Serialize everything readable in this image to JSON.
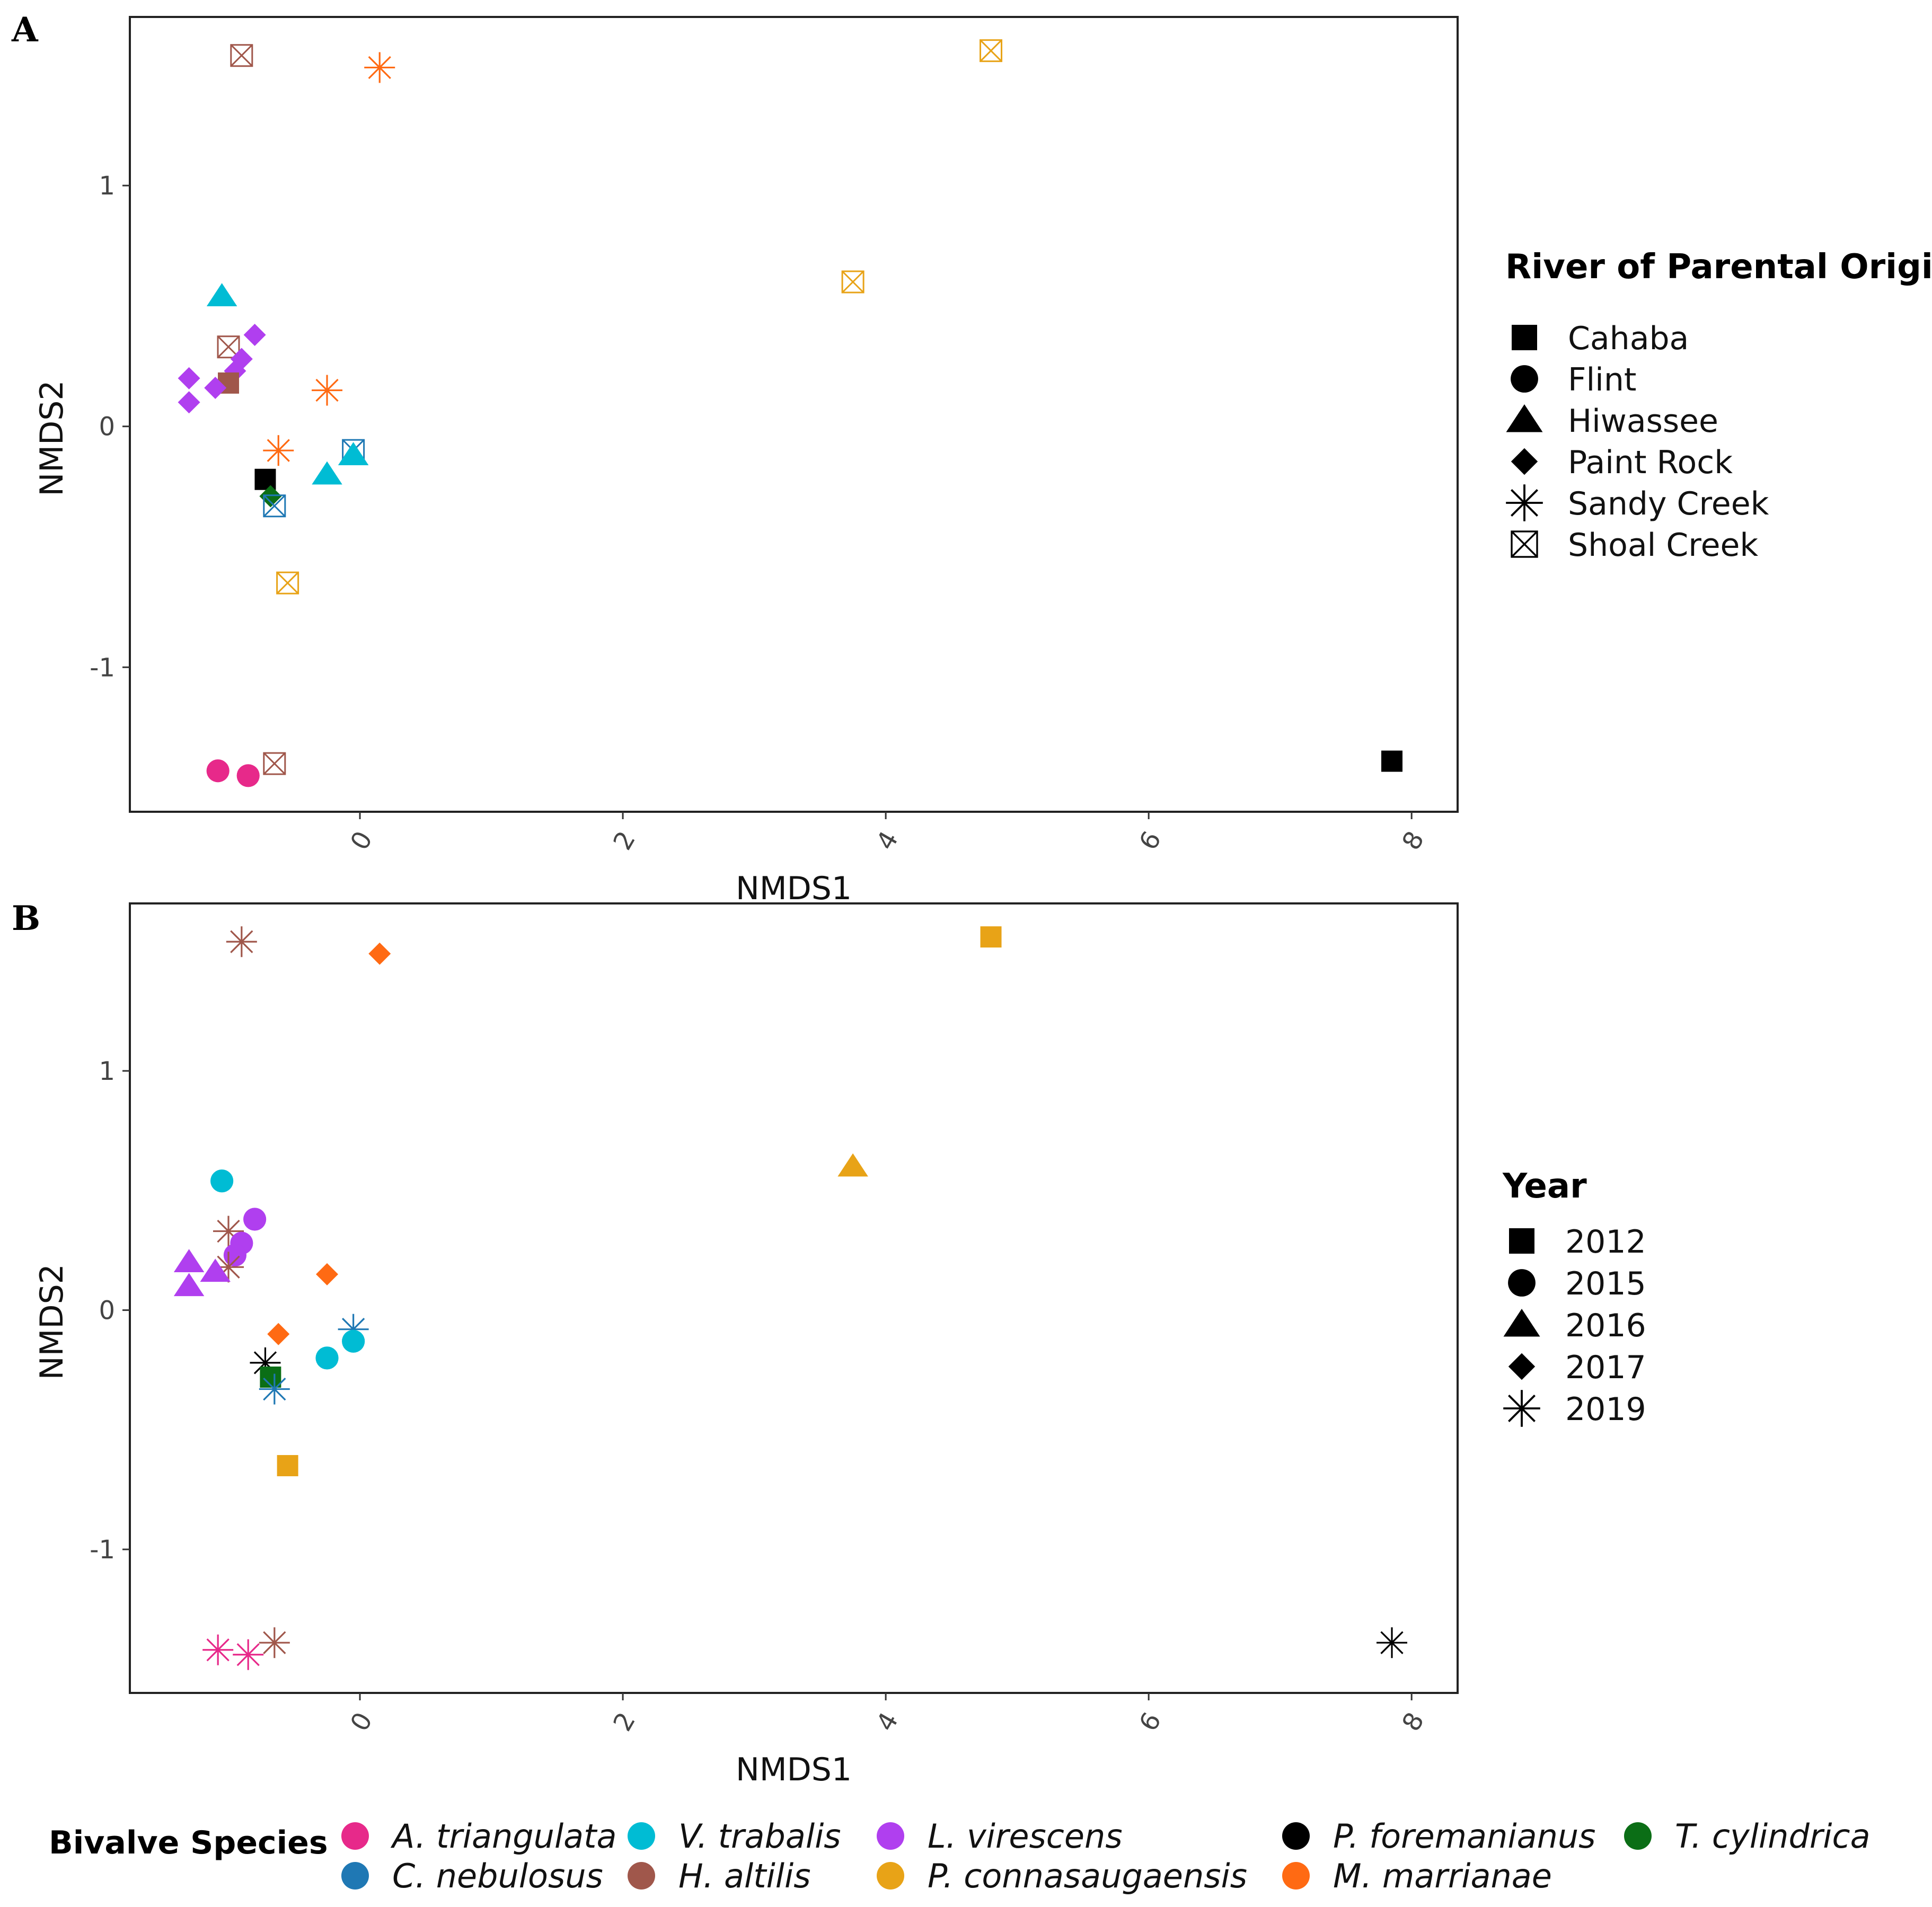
{
  "colors": {
    "A. triangulata": "#E7298A",
    "C. nebulosus": "#1F78B4",
    "V. trabalis": "#00BCD4",
    "H. altilis": "#A0574B",
    "L. virescens": "#B03FEF",
    "P. connasaugaensis": "#E8A317",
    "P. foremanianus": "#000000",
    "M. marrianae": "#FF6A13",
    "T. cylindrica": "#0B6E16"
  },
  "chart_data": [
    {
      "panel": "A",
      "type": "scatter",
      "xlabel": "NMDS1",
      "ylabel": "NMDS2",
      "xlim": [
        -1.75,
        8.35
      ],
      "ylim": [
        -1.6,
        1.7
      ],
      "xticks": [
        0,
        2,
        4,
        6,
        8
      ],
      "yticks": [
        -1,
        0,
        1
      ],
      "legend_title": "River of Parental Origin",
      "legend": [
        {
          "label": "Cahaba",
          "shape": "square"
        },
        {
          "label": "Flint",
          "shape": "circle"
        },
        {
          "label": "Hiwassee",
          "shape": "triangle"
        },
        {
          "label": "Paint Rock",
          "shape": "diamond"
        },
        {
          "label": "Sandy Creek",
          "shape": "asterisk"
        },
        {
          "label": "Shoal Creek",
          "shape": "boxx"
        }
      ],
      "points": [
        {
          "x": -0.9,
          "y": 1.54,
          "shape": "boxx",
          "species": "H. altilis"
        },
        {
          "x": 0.15,
          "y": 1.49,
          "shape": "asterisk",
          "species": "M. marrianae"
        },
        {
          "x": 4.8,
          "y": 1.56,
          "shape": "boxx",
          "species": "P. connasaugaensis"
        },
        {
          "x": 3.75,
          "y": 0.6,
          "shape": "boxx",
          "species": "P. connasaugaensis"
        },
        {
          "x": -1.05,
          "y": 0.54,
          "shape": "triangle",
          "species": "V. trabalis"
        },
        {
          "x": -0.8,
          "y": 0.38,
          "shape": "diamond",
          "species": "L. virescens"
        },
        {
          "x": -1.0,
          "y": 0.33,
          "shape": "boxx",
          "species": "H. altilis"
        },
        {
          "x": -0.9,
          "y": 0.28,
          "shape": "diamond",
          "species": "L. virescens"
        },
        {
          "x": -0.95,
          "y": 0.23,
          "shape": "diamond",
          "species": "L. virescens"
        },
        {
          "x": -1.3,
          "y": 0.2,
          "shape": "diamond",
          "species": "L. virescens"
        },
        {
          "x": -1.0,
          "y": 0.18,
          "shape": "square",
          "species": "H. altilis"
        },
        {
          "x": -1.1,
          "y": 0.16,
          "shape": "diamond",
          "species": "L. virescens"
        },
        {
          "x": -0.25,
          "y": 0.15,
          "shape": "asterisk",
          "species": "M. marrianae"
        },
        {
          "x": -1.3,
          "y": 0.1,
          "shape": "diamond",
          "species": "L. virescens"
        },
        {
          "x": -0.62,
          "y": -0.1,
          "shape": "asterisk",
          "species": "M. marrianae"
        },
        {
          "x": -0.05,
          "y": -0.1,
          "shape": "boxx",
          "species": "C. nebulosus"
        },
        {
          "x": -0.05,
          "y": -0.12,
          "shape": "triangle",
          "species": "V. trabalis"
        },
        {
          "x": -0.25,
          "y": -0.2,
          "shape": "triangle",
          "species": "V. trabalis"
        },
        {
          "x": -0.72,
          "y": -0.22,
          "shape": "square",
          "species": "P. foremanianus"
        },
        {
          "x": -0.68,
          "y": -0.29,
          "shape": "diamond",
          "species": "T. cylindrica"
        },
        {
          "x": -0.65,
          "y": -0.33,
          "shape": "boxx",
          "species": "C. nebulosus"
        },
        {
          "x": -0.55,
          "y": -0.65,
          "shape": "boxx",
          "species": "P. connasaugaensis"
        },
        {
          "x": -1.08,
          "y": -1.43,
          "shape": "circle",
          "species": "A. triangulata"
        },
        {
          "x": -0.85,
          "y": -1.45,
          "shape": "circle",
          "species": "A. triangulata"
        },
        {
          "x": -0.65,
          "y": -1.4,
          "shape": "boxx",
          "species": "H. altilis"
        },
        {
          "x": 7.85,
          "y": -1.39,
          "shape": "square",
          "species": "P. foremanianus"
        }
      ]
    },
    {
      "panel": "B",
      "type": "scatter",
      "xlabel": "NMDS1",
      "ylabel": "NMDS2",
      "xlim": [
        -1.75,
        8.35
      ],
      "ylim": [
        -1.6,
        1.7
      ],
      "xticks": [
        0,
        2,
        4,
        6,
        8
      ],
      "yticks": [
        -1,
        0,
        1
      ],
      "legend_title": "Year",
      "legend": [
        {
          "label": "2012",
          "shape": "square"
        },
        {
          "label": "2015",
          "shape": "circle"
        },
        {
          "label": "2016",
          "shape": "triangle"
        },
        {
          "label": "2017",
          "shape": "diamond"
        },
        {
          "label": "2019",
          "shape": "asterisk"
        }
      ],
      "points": [
        {
          "x": -0.9,
          "y": 1.54,
          "shape": "asterisk",
          "species": "H. altilis"
        },
        {
          "x": 0.15,
          "y": 1.49,
          "shape": "diamond",
          "species": "M. marrianae"
        },
        {
          "x": 4.8,
          "y": 1.56,
          "shape": "square",
          "species": "P. connasaugaensis"
        },
        {
          "x": 3.75,
          "y": 0.6,
          "shape": "triangle",
          "species": "P. connasaugaensis"
        },
        {
          "x": -1.05,
          "y": 0.54,
          "shape": "circle",
          "species": "V. trabalis"
        },
        {
          "x": -0.8,
          "y": 0.38,
          "shape": "circle",
          "species": "L. virescens"
        },
        {
          "x": -1.0,
          "y": 0.33,
          "shape": "asterisk",
          "species": "H. altilis"
        },
        {
          "x": -0.9,
          "y": 0.28,
          "shape": "circle",
          "species": "L. virescens"
        },
        {
          "x": -0.95,
          "y": 0.23,
          "shape": "circle",
          "species": "L. virescens"
        },
        {
          "x": -1.3,
          "y": 0.2,
          "shape": "triangle",
          "species": "L. virescens"
        },
        {
          "x": -1.0,
          "y": 0.18,
          "shape": "asterisk",
          "species": "H. altilis"
        },
        {
          "x": -1.1,
          "y": 0.16,
          "shape": "triangle",
          "species": "L. virescens"
        },
        {
          "x": -0.25,
          "y": 0.15,
          "shape": "diamond",
          "species": "M. marrianae"
        },
        {
          "x": -1.3,
          "y": 0.1,
          "shape": "triangle",
          "species": "L. virescens"
        },
        {
          "x": -0.62,
          "y": -0.1,
          "shape": "diamond",
          "species": "M. marrianae"
        },
        {
          "x": -0.05,
          "y": -0.08,
          "shape": "asterisk",
          "species": "C. nebulosus"
        },
        {
          "x": -0.05,
          "y": -0.13,
          "shape": "circle",
          "species": "V. trabalis"
        },
        {
          "x": -0.25,
          "y": -0.2,
          "shape": "circle",
          "species": "V. trabalis"
        },
        {
          "x": -0.72,
          "y": -0.22,
          "shape": "asterisk",
          "species": "P. foremanianus"
        },
        {
          "x": -0.68,
          "y": -0.28,
          "shape": "square",
          "species": "T. cylindrica"
        },
        {
          "x": -0.65,
          "y": -0.33,
          "shape": "asterisk",
          "species": "C. nebulosus"
        },
        {
          "x": -0.55,
          "y": -0.65,
          "shape": "square",
          "species": "P. connasaugaensis"
        },
        {
          "x": -1.08,
          "y": -1.42,
          "shape": "asterisk",
          "species": "A. triangulata"
        },
        {
          "x": -0.85,
          "y": -1.44,
          "shape": "asterisk",
          "species": "A. triangulata"
        },
        {
          "x": -0.65,
          "y": -1.39,
          "shape": "asterisk",
          "species": "H. altilis"
        },
        {
          "x": 7.85,
          "y": -1.39,
          "shape": "asterisk",
          "species": "P. foremanianus"
        }
      ]
    }
  ],
  "species_legend": {
    "title": "Bivalve Species",
    "items": [
      "A. triangulata",
      "C. nebulosus",
      "V. trabalis",
      "H. altilis",
      "L. virescens",
      "P. connasaugaensis",
      "P. foremanianus",
      "M. marrianae",
      "T. cylindrica"
    ]
  }
}
